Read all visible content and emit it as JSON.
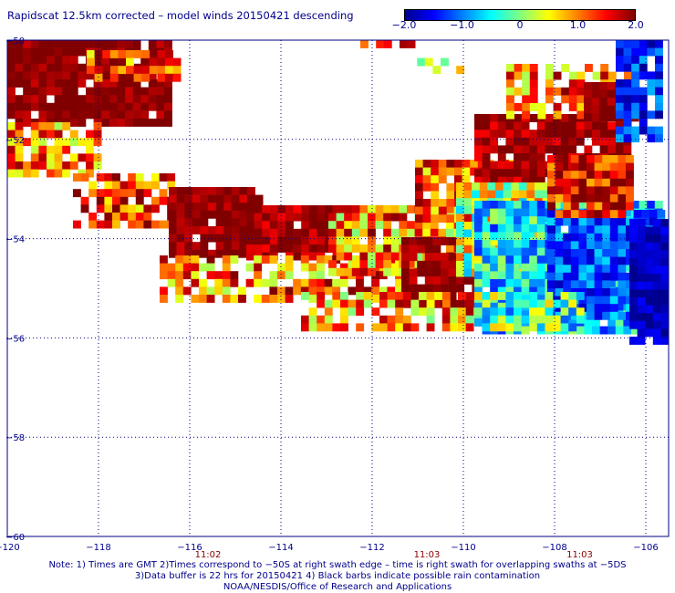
{
  "title": "Rapidscat 12.5km corrected – model winds 20150421 descending",
  "colorbar": {
    "labels": [
      "−2.0",
      "−1.0",
      "0",
      "1.0",
      "2.0"
    ],
    "values": [
      -2.0,
      -1.0,
      0,
      1.0,
      2.0
    ],
    "min": -2.0,
    "max": 2.0
  },
  "axes": {
    "lon_labels": [
      "−120",
      "−118",
      "−116",
      "−114",
      "−112",
      "−110",
      "−108",
      "−106"
    ],
    "lon_values": [
      -120,
      -118,
      -116,
      -114,
      -112,
      -110,
      -108,
      -106
    ],
    "lat_labels": [
      "−50",
      "−52",
      "−54",
      "−56",
      "−58",
      "−60"
    ],
    "lat_values": [
      -50,
      -52,
      -54,
      -56,
      -58,
      -60
    ],
    "lon_range": [
      -120,
      -105.5
    ],
    "lat_range": [
      -50,
      -60
    ],
    "grid": "dotted"
  },
  "times": {
    "labels": [
      "11:02",
      "11:03",
      "11:03"
    ],
    "lons": [
      -115.6,
      -110.8,
      -107.45
    ],
    "color": "#8b0000"
  },
  "notes": [
    "Note: 1) Times are GMT 2)Times correspond to −50S at right swath edge – time is right swath for overlapping swaths at −5DS",
    "3)Data buffer is 22 hrs for 20150421 4) Black barbs indicate possible rain contamination",
    "NOAA/NESDIS/Office of Research and Applications"
  ],
  "colors": {
    "text": "#00008b",
    "grid": "#000080",
    "colormap": [
      "#00008f",
      "#0000ff",
      "#0080ff",
      "#00ffff",
      "#80ff80",
      "#ffff00",
      "#ff8000",
      "#ff0000",
      "#800000"
    ]
  }
}
